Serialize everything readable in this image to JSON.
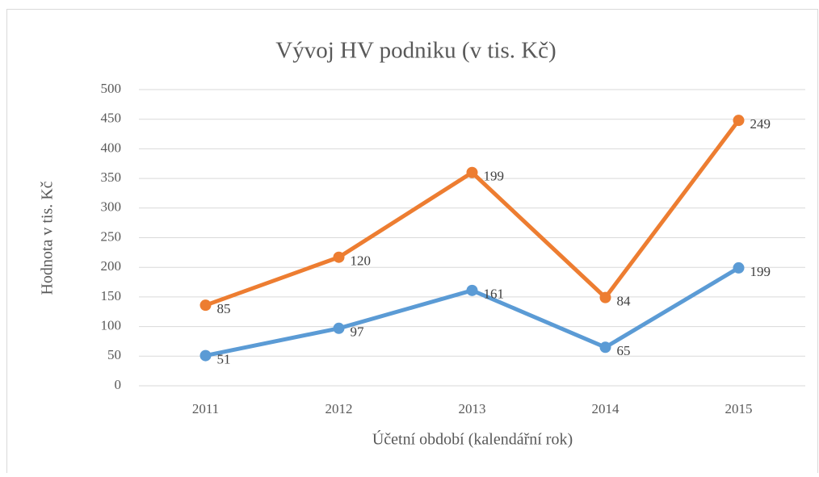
{
  "chart_data": {
    "type": "line",
    "stacked": true,
    "title": "Vývoj HV podniku (v tis. Kč)",
    "x_label": "Účetní období (kalendářní rok)",
    "y_label": "Hodnota v tis. Kč",
    "categories": [
      "2011",
      "2012",
      "2013",
      "2014",
      "2015"
    ],
    "series": [
      {
        "color": "#5b9bd5",
        "values": [
          51,
          97,
          161,
          65,
          199
        ]
      },
      {
        "color": "#ed7d31",
        "values": [
          85,
          120,
          199,
          84,
          249
        ]
      }
    ],
    "ylim": [
      0,
      500
    ],
    "yticks": [
      0,
      50,
      100,
      150,
      200,
      250,
      300,
      350,
      400,
      450,
      500
    ],
    "grid": true
  }
}
